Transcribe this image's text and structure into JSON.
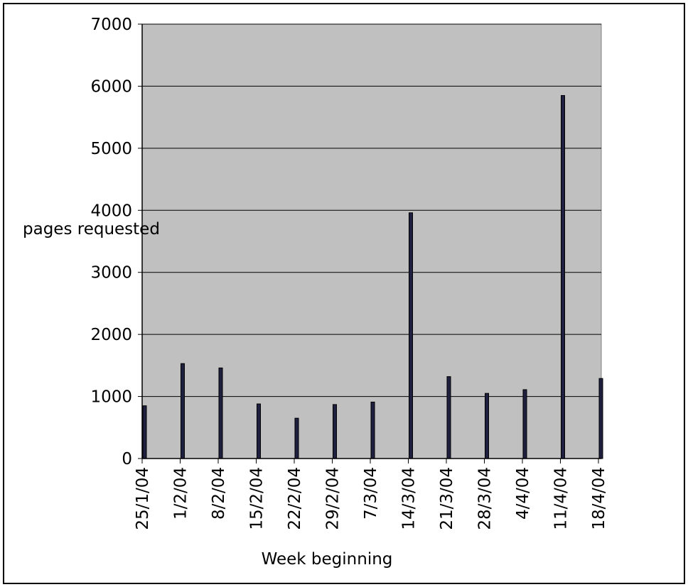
{
  "chart_data": {
    "type": "bar",
    "title": "",
    "xlabel": "Week beginning",
    "ylabel": "pages requested",
    "categories": [
      "25/1/04",
      "1/2/04",
      "8/2/04",
      "15/2/04",
      "22/2/04",
      "29/2/04",
      "7/3/04",
      "14/3/04",
      "21/3/04",
      "28/3/04",
      "4/4/04",
      "11/4/04",
      "18/4/04"
    ],
    "series": [
      {
        "values": [
          850,
          1530,
          1460,
          880,
          650,
          870,
          910,
          3960,
          1320,
          1050,
          1110,
          5850,
          1290
        ]
      }
    ],
    "ylim": [
      0,
      7000
    ],
    "yticks": [
      0,
      1000,
      2000,
      3000,
      4000,
      5000,
      6000,
      7000
    ],
    "grid": true,
    "legend": "none",
    "colors": {
      "plot_background": "#c0c0c0",
      "bar_fill": "#1f1f3f",
      "bar_outline": "#000000",
      "grid": "#000000"
    }
  }
}
